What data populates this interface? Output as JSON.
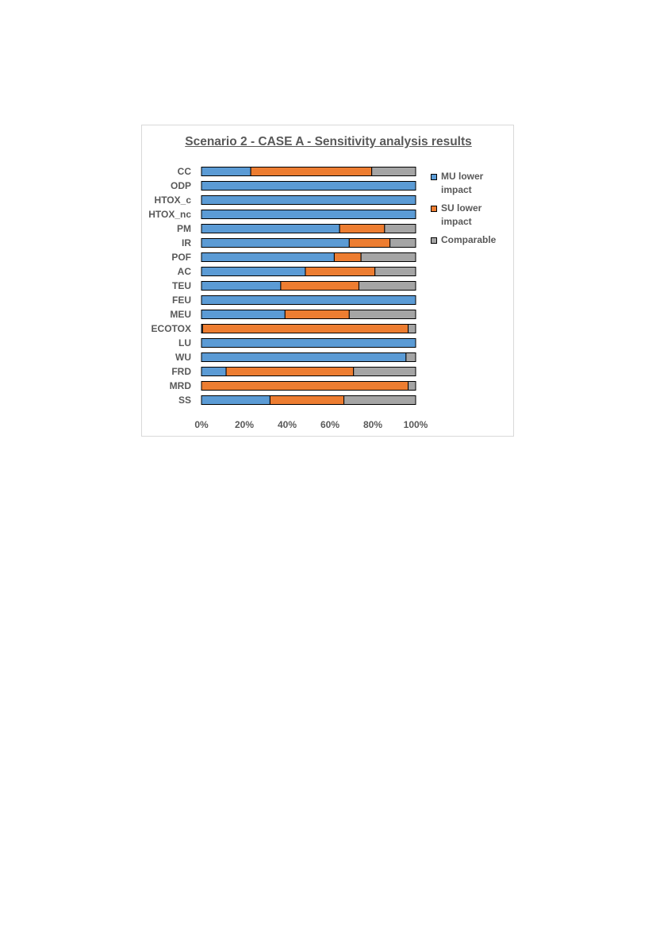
{
  "chart_data": {
    "type": "bar",
    "orientation": "horizontal",
    "stacked": "percent",
    "title": "Scenario 2 - CASE A - Sensitivity analysis results",
    "xlabel": "",
    "ylabel": "",
    "xlim": [
      0,
      100
    ],
    "x_ticks": [
      "0%",
      "20%",
      "40%",
      "60%",
      "80%",
      "100%"
    ],
    "grid": false,
    "legend_position": "right",
    "categories": [
      "CC",
      "ODP",
      "HTOX_c",
      "HTOX_nc",
      "PM",
      "IR",
      "POF",
      "AC",
      "TEU",
      "FEU",
      "MEU",
      "ECOTOX",
      "LU",
      "WU",
      "FRD",
      "MRD",
      "SS"
    ],
    "series": [
      {
        "name": "MU lower impact",
        "color": "#5b9bd5",
        "values": [
          23,
          100,
          100,
          100,
          64.5,
          69,
          62,
          48.5,
          37,
          100,
          39,
          0.5,
          100,
          95.5,
          11.5,
          0,
          32
        ]
      },
      {
        "name": "SU lower impact",
        "color": "#ed7d31",
        "values": [
          56.5,
          0,
          0,
          0,
          21,
          19,
          12.5,
          32.5,
          36.5,
          0,
          30,
          96,
          0,
          0,
          59.5,
          96.5,
          34.5
        ]
      },
      {
        "name": "Comparable",
        "color": "#a5a5a5",
        "values": [
          20.5,
          0,
          0,
          0,
          14.5,
          12,
          25.5,
          19,
          26.5,
          0,
          31,
          3.5,
          0,
          4.5,
          29,
          3.5,
          33.5
        ]
      }
    ]
  },
  "legend": {
    "items": [
      {
        "label": "MU lower impact",
        "color": "#5b9bd5"
      },
      {
        "label": "SU lower impact",
        "color": "#ed7d31"
      },
      {
        "label": "Comparable",
        "color": "#a5a5a5"
      }
    ]
  }
}
